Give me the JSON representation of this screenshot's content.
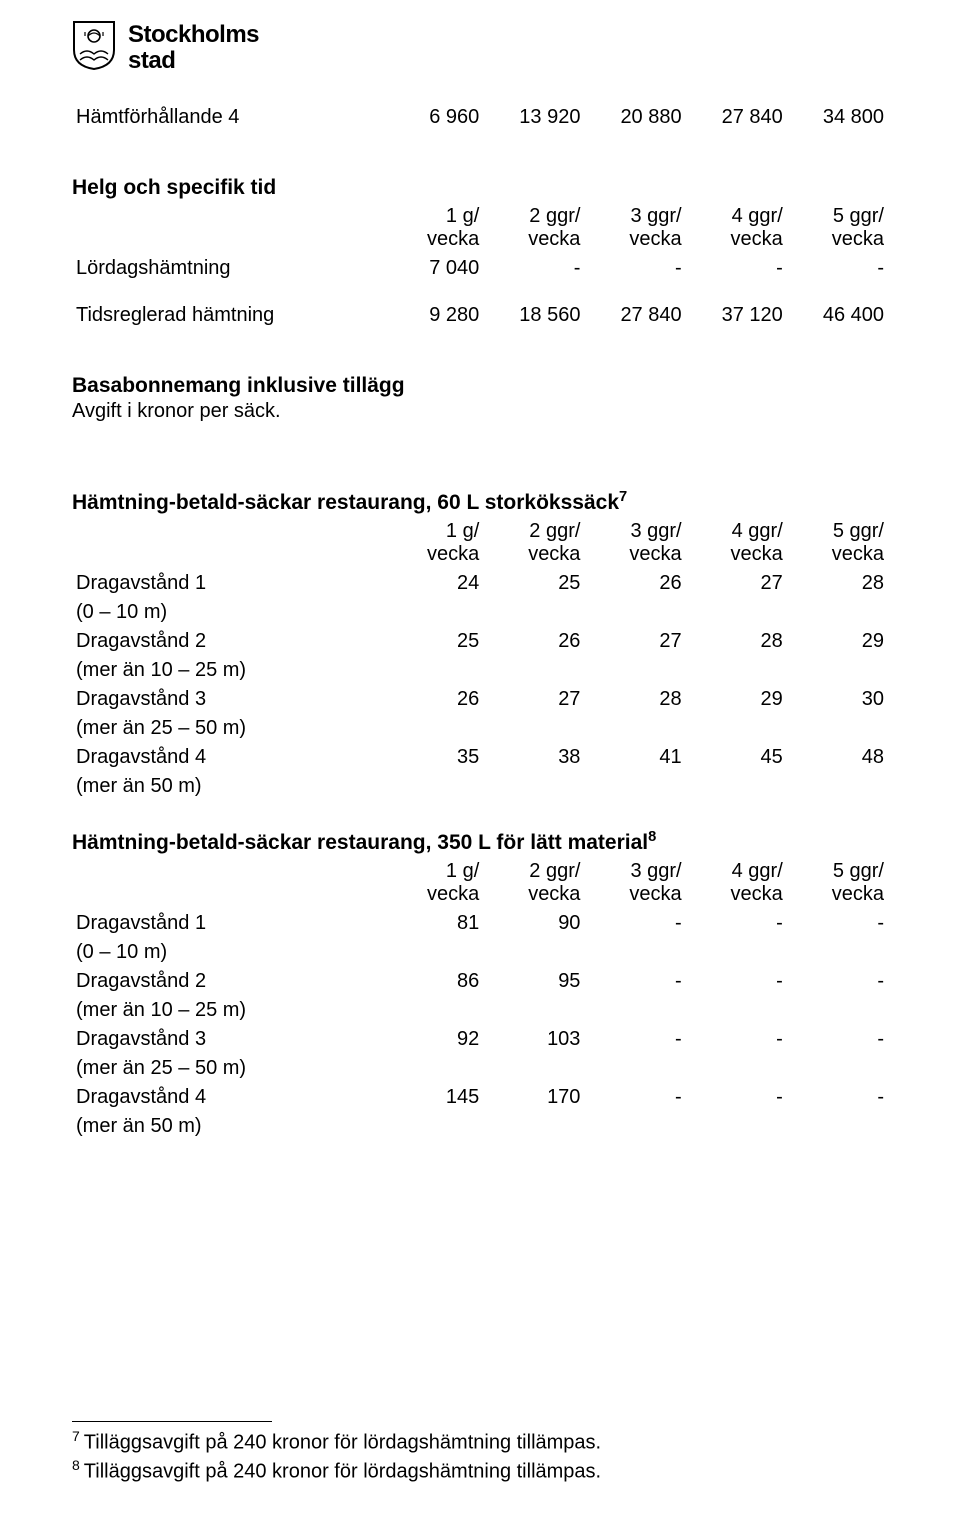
{
  "brand": {
    "line1": "Stockholms",
    "line2": "stad"
  },
  "top_row": {
    "label": "Hämtförhållande 4",
    "values": [
      "6 960",
      "13 920",
      "20 880",
      "27 840",
      "34 800"
    ]
  },
  "section_helg": {
    "title": "Helg och specifik tid",
    "headers": [
      "1 g/\nvecka",
      "2 ggr/\nvecka",
      "3 ggr/\nvecka",
      "4 ggr/\nvecka",
      "5 ggr/\nvecka"
    ],
    "rows": [
      {
        "label": "Lördagshämtning",
        "values": [
          "7 040",
          "-",
          "-",
          "-",
          "-"
        ]
      }
    ],
    "extra_rows": [
      {
        "label": "Tidsreglerad hämtning",
        "values": [
          "9 280",
          "18 560",
          "27 840",
          "37 120",
          "46 400"
        ]
      }
    ]
  },
  "section_basabonnemang": {
    "title": "Basabonnemang inklusive tillägg",
    "subtitle": "Avgift i kronor per säck."
  },
  "section_60l": {
    "title": "Hämtning-betald-säckar restaurang, 60 L storkökssäck",
    "title_sup": "7",
    "headers": [
      "1 g/\nvecka",
      "2 ggr/\nvecka",
      "3 ggr/\nvecka",
      "4 ggr/\nvecka",
      "5 ggr/\nvecka"
    ],
    "rows": [
      {
        "label": "Dragavstånd 1",
        "sublabel": "(0 – 10 m)",
        "values": [
          "24",
          "25",
          "26",
          "27",
          "28"
        ]
      },
      {
        "label": "Dragavstånd 2",
        "sublabel": "(mer än 10 – 25 m)",
        "values": [
          "25",
          "26",
          "27",
          "28",
          "29"
        ]
      },
      {
        "label": "Dragavstånd 3",
        "sublabel": "(mer än 25 – 50 m)",
        "values": [
          "26",
          "27",
          "28",
          "29",
          "30"
        ]
      },
      {
        "label": "Dragavstånd 4",
        "sublabel": "(mer än 50 m)",
        "values": [
          "35",
          "38",
          "41",
          "45",
          "48"
        ]
      }
    ]
  },
  "section_350l": {
    "title": "Hämtning-betald-säckar restaurang, 350 L för lätt material",
    "title_sup": "8",
    "headers": [
      "1 g/\nvecka",
      "2 ggr/\nvecka",
      "3 ggr/\nvecka",
      "4 ggr/\nvecka",
      "5 ggr/\nvecka"
    ],
    "rows": [
      {
        "label": "Dragavstånd 1",
        "sublabel": "(0 – 10 m)",
        "values": [
          "81",
          "90",
          "-",
          "-",
          "-"
        ]
      },
      {
        "label": "Dragavstånd 2",
        "sublabel": "(mer än 10 – 25 m)",
        "values": [
          "86",
          "95",
          "-",
          "-",
          "-"
        ]
      },
      {
        "label": "Dragavstånd 3",
        "sublabel": "(mer än 25 – 50 m)",
        "values": [
          "92",
          "103",
          "-",
          "-",
          "-"
        ]
      },
      {
        "label": "Dragavstånd 4",
        "sublabel": "(mer än 50 m)",
        "values": [
          "145",
          "170",
          "-",
          "-",
          "-"
        ]
      }
    ]
  },
  "footnotes": [
    {
      "num": "7",
      "text": "Tilläggsavgift på 240 kronor för lördagshämtning tillämpas."
    },
    {
      "num": "8",
      "text": "Tilläggsavgift på 240 kronor för lördagshämtning tillämpas."
    }
  ],
  "colors": {
    "text": "#000000",
    "background": "#ffffff"
  }
}
